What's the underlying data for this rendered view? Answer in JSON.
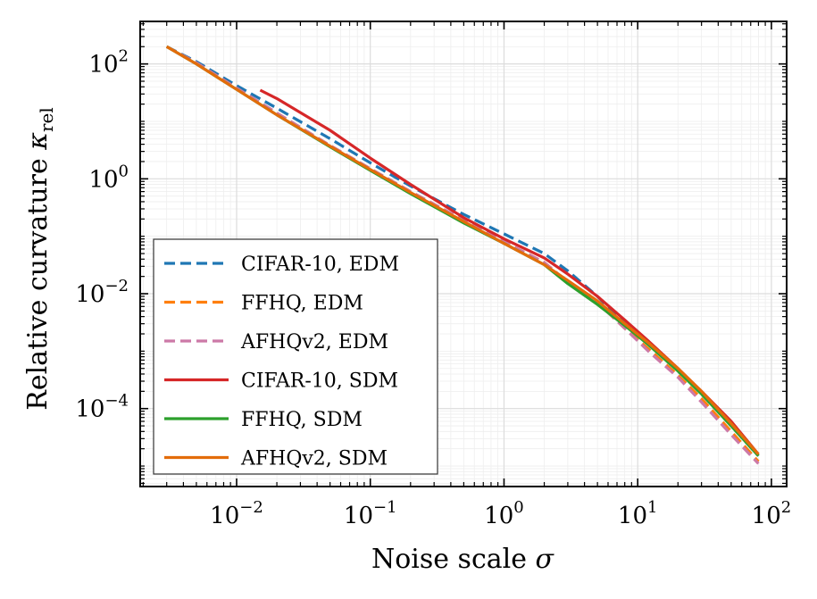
{
  "chart_data": {
    "type": "line",
    "xscale": "log",
    "yscale": "log",
    "xlim": [
      0.0019,
      130
    ],
    "ylim": [
      4.4e-06,
      550
    ],
    "grid": true,
    "xlabel": "Noise scale",
    "xlabel_symbol": "σ",
    "ylabel": "Relative curvature",
    "ylabel_symbol": "κ",
    "ylabel_subscript": "rel",
    "xticks": [
      {
        "value": 0.01,
        "base": "10",
        "exp": "−2"
      },
      {
        "value": 0.1,
        "base": "10",
        "exp": "−1"
      },
      {
        "value": 1,
        "base": "10",
        "exp": "0"
      },
      {
        "value": 10,
        "base": "10",
        "exp": "1"
      },
      {
        "value": 100,
        "base": "10",
        "exp": "2"
      }
    ],
    "yticks": [
      {
        "value": 0.0001,
        "base": "10",
        "exp": "−4"
      },
      {
        "value": 0.01,
        "base": "10",
        "exp": "−2"
      },
      {
        "value": 1,
        "base": "10",
        "exp": "0"
      },
      {
        "value": 100,
        "base": "10",
        "exp": "2"
      }
    ],
    "legend_position": "lower-left",
    "series": [
      {
        "name": "CIFAR-10, EDM",
        "color": "#1f77b4",
        "dash": "dashed",
        "x": [
          0.003,
          0.005,
          0.01,
          0.02,
          0.05,
          0.1,
          0.2,
          0.5,
          1,
          2,
          3,
          5,
          8,
          12,
          20,
          30,
          50,
          80
        ],
        "y": [
          200,
          110,
          42,
          17,
          5.0,
          1.9,
          0.75,
          0.24,
          0.11,
          0.05,
          0.025,
          0.009,
          0.003,
          0.0013,
          0.00045,
          0.00018,
          5e-05,
          1.5e-05
        ]
      },
      {
        "name": "FFHQ, EDM",
        "color": "#ff7f0e",
        "dash": "dashed",
        "x": [
          0.003,
          0.005,
          0.01,
          0.02,
          0.05,
          0.1,
          0.2,
          0.5,
          1,
          2,
          3,
          5,
          8,
          12,
          20,
          30,
          50,
          80
        ],
        "y": [
          200,
          105,
          38,
          14,
          3.8,
          1.5,
          0.6,
          0.19,
          0.08,
          0.035,
          0.016,
          0.007,
          0.0025,
          0.0011,
          0.00038,
          0.00015,
          4e-05,
          1.2e-05
        ]
      },
      {
        "name": "AFHQv2, EDM",
        "color": "#cc79a7",
        "dash": "dashed",
        "x": [
          0.003,
          0.005,
          0.01,
          0.02,
          0.05,
          0.1,
          0.2,
          0.5,
          1,
          2,
          3,
          5,
          8,
          12,
          20,
          30,
          50,
          80
        ],
        "y": [
          200,
          105,
          38,
          14,
          3.8,
          1.5,
          0.6,
          0.19,
          0.08,
          0.035,
          0.016,
          0.007,
          0.0025,
          0.001,
          0.00035,
          0.00013,
          3.5e-05,
          1.1e-05
        ]
      },
      {
        "name": "CIFAR-10, SDM",
        "color": "#d62728",
        "dash": "solid",
        "x": [
          0.015,
          0.02,
          0.05,
          0.1,
          0.2,
          0.5,
          1,
          2,
          3,
          5,
          8,
          12,
          20,
          30,
          50,
          80
        ],
        "y": [
          35,
          25,
          7.0,
          2.3,
          0.8,
          0.21,
          0.09,
          0.042,
          0.022,
          0.009,
          0.0035,
          0.0015,
          0.0005,
          0.0002,
          6e-05,
          1.6e-05
        ]
      },
      {
        "name": "FFHQ, SDM",
        "color": "#2ca02c",
        "dash": "solid",
        "x": [
          0.003,
          0.005,
          0.01,
          0.02,
          0.05,
          0.1,
          0.2,
          0.5,
          1,
          2,
          3,
          5,
          8,
          12,
          20,
          30,
          50,
          80
        ],
        "y": [
          200,
          100,
          36,
          13,
          3.6,
          1.4,
          0.55,
          0.17,
          0.075,
          0.032,
          0.015,
          0.0065,
          0.0028,
          0.0013,
          0.00045,
          0.00018,
          5e-05,
          1.5e-05
        ]
      },
      {
        "name": "AFHQv2, SDM",
        "color": "#e36c0a",
        "dash": "solid",
        "x": [
          0.003,
          0.005,
          0.01,
          0.02,
          0.05,
          0.1,
          0.2,
          0.5,
          1,
          2,
          3,
          5,
          8,
          12,
          20,
          30,
          50,
          80
        ],
        "y": [
          200,
          100,
          36,
          13,
          3.7,
          1.45,
          0.58,
          0.18,
          0.075,
          0.032,
          0.017,
          0.0075,
          0.003,
          0.0014,
          0.0005,
          0.0002,
          5.5e-05,
          1.6e-05
        ]
      }
    ]
  }
}
